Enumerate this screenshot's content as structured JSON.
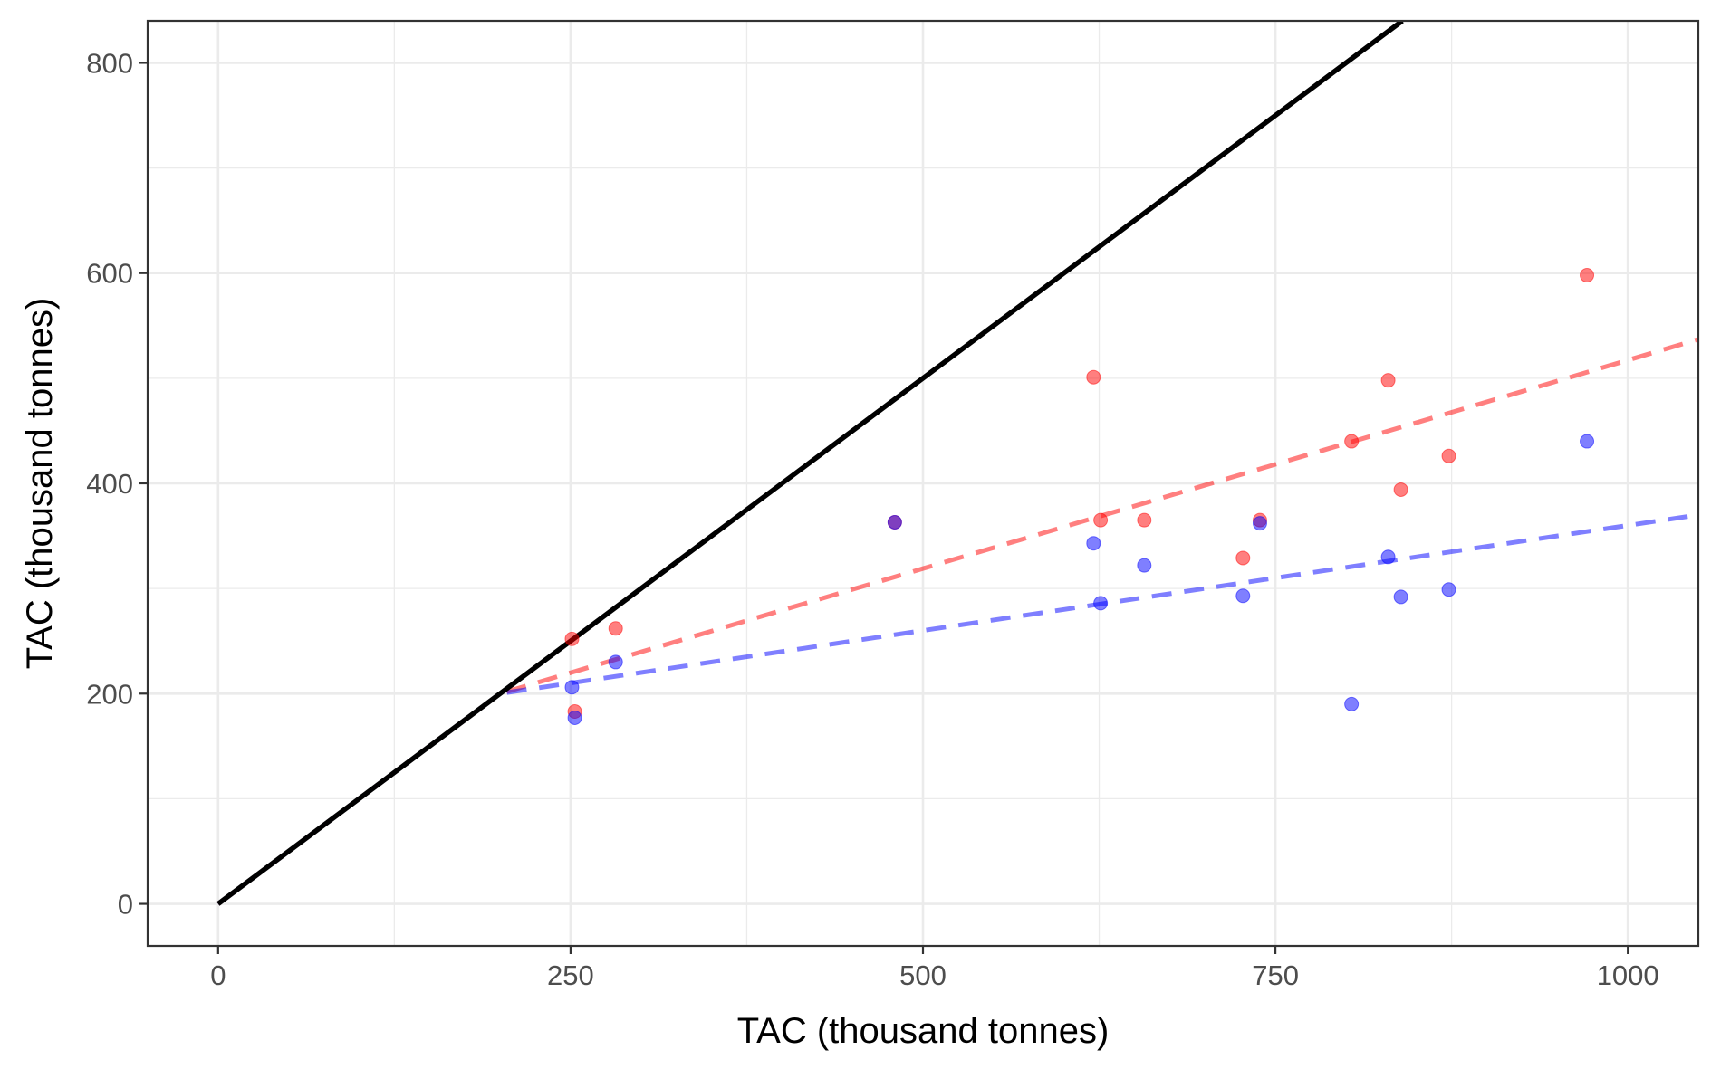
{
  "chart_data": {
    "type": "scatter",
    "xlabel": "TAC (thousand tonnes)",
    "ylabel": "TAC (thousand tonnes)",
    "xlim": [
      -50,
      1050
    ],
    "ylim": [
      -40,
      840
    ],
    "grid": true,
    "x_ticks": [
      0,
      250,
      500,
      750,
      1000
    ],
    "x_tick_labels": [
      "0",
      "250",
      "500",
      "750",
      "1000"
    ],
    "y_ticks": [
      0,
      200,
      400,
      600,
      800
    ],
    "y_tick_labels": [
      "0",
      "200",
      "400",
      "600",
      "800"
    ],
    "x_minor": [
      125,
      375,
      625,
      875
    ],
    "y_minor": [
      100,
      300,
      500,
      700
    ],
    "colors": {
      "red": "#ff0000",
      "blue": "#0000ff",
      "identity": "#000000",
      "grid": "#ebebeb",
      "panel_border": "#333333"
    },
    "series": [
      {
        "color": "red",
        "points": [
          {
            "x": 251,
            "y": 252
          },
          {
            "x": 253,
            "y": 183
          },
          {
            "x": 282,
            "y": 262
          },
          {
            "x": 480,
            "y": 363
          },
          {
            "x": 621,
            "y": 501
          },
          {
            "x": 626,
            "y": 365
          },
          {
            "x": 657,
            "y": 365
          },
          {
            "x": 727,
            "y": 329
          },
          {
            "x": 739,
            "y": 365
          },
          {
            "x": 804,
            "y": 440
          },
          {
            "x": 830,
            "y": 498
          },
          {
            "x": 839,
            "y": 394
          },
          {
            "x": 873,
            "y": 426
          },
          {
            "x": 971,
            "y": 598
          }
        ]
      },
      {
        "color": "blue",
        "points": [
          {
            "x": 251,
            "y": 206
          },
          {
            "x": 253,
            "y": 177
          },
          {
            "x": 282,
            "y": 230
          },
          {
            "x": 480,
            "y": 363
          },
          {
            "x": 621,
            "y": 343
          },
          {
            "x": 626,
            "y": 286
          },
          {
            "x": 657,
            "y": 322
          },
          {
            "x": 727,
            "y": 293
          },
          {
            "x": 739,
            "y": 362
          },
          {
            "x": 804,
            "y": 190
          },
          {
            "x": 830,
            "y": 330
          },
          {
            "x": 839,
            "y": 292
          },
          {
            "x": 873,
            "y": 299
          },
          {
            "x": 971,
            "y": 440
          }
        ]
      }
    ],
    "lines": [
      {
        "color": "identity",
        "style": "solid",
        "x": [
          0,
          840
        ],
        "y": [
          0,
          840
        ]
      },
      {
        "color": "red",
        "style": "dashed",
        "x": [
          0,
          200,
          1050
        ],
        "y": [
          0,
          200,
          537
        ]
      },
      {
        "color": "blue",
        "style": "dashed",
        "x": [
          0,
          200,
          1050
        ],
        "y": [
          0,
          200,
          370
        ]
      }
    ]
  }
}
